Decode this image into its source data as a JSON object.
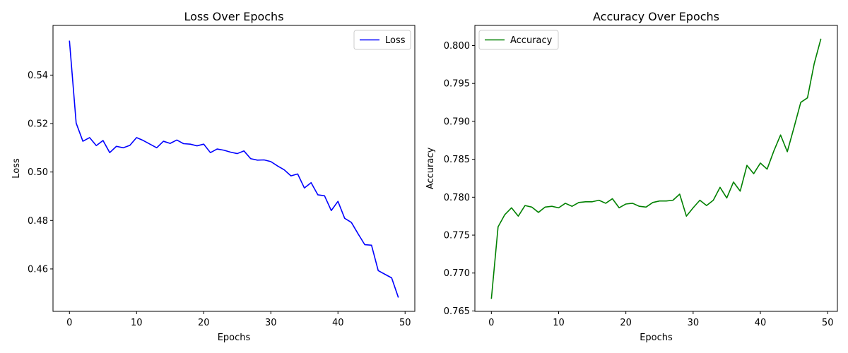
{
  "chart_data": [
    {
      "type": "line",
      "title": "Loss Over Epochs",
      "xlabel": "Epochs",
      "ylabel": "Loss",
      "xlim": [
        -2.45,
        51.45
      ],
      "ylim": [
        0.4425,
        0.5605
      ],
      "xticks": [
        0,
        10,
        20,
        30,
        40,
        50
      ],
      "yticks": [
        0.46,
        0.48,
        0.5,
        0.52,
        0.54
      ],
      "ytick_labels": [
        "0.46",
        "0.48",
        "0.50",
        "0.52",
        "0.54"
      ],
      "xtick_labels": [
        "0",
        "10",
        "20",
        "30",
        "40",
        "50"
      ],
      "legend": "top-right",
      "grid": false,
      "series": [
        {
          "name": "Loss",
          "color": "#0000ff",
          "x": [
            0,
            1,
            2,
            3,
            4,
            5,
            6,
            7,
            8,
            9,
            10,
            11,
            12,
            13,
            14,
            15,
            16,
            17,
            18,
            19,
            20,
            21,
            22,
            23,
            24,
            25,
            26,
            27,
            28,
            29,
            30,
            31,
            32,
            33,
            34,
            35,
            36,
            37,
            38,
            39,
            40,
            41,
            42,
            43,
            44,
            45,
            46,
            47,
            48,
            49
          ],
          "values": [
            0.5542,
            0.5202,
            0.5127,
            0.5142,
            0.5109,
            0.513,
            0.508,
            0.5106,
            0.51,
            0.511,
            0.5142,
            0.513,
            0.5115,
            0.51,
            0.5127,
            0.5118,
            0.5132,
            0.5117,
            0.5115,
            0.5108,
            0.5115,
            0.508,
            0.5095,
            0.509,
            0.5082,
            0.5076,
            0.5087,
            0.5055,
            0.5049,
            0.505,
            0.5043,
            0.5025,
            0.5009,
            0.4984,
            0.4992,
            0.4934,
            0.4956,
            0.4906,
            0.4902,
            0.4841,
            0.4879,
            0.4809,
            0.4792,
            0.4745,
            0.47,
            0.4698,
            0.4593,
            0.4578,
            0.4563,
            0.4482
          ]
        }
      ]
    },
    {
      "type": "line",
      "title": "Accuracy Over Epochs",
      "xlabel": "Epochs",
      "ylabel": "Accuracy",
      "xlim": [
        -2.45,
        51.45
      ],
      "ylim": [
        0.76495,
        0.80265
      ],
      "xticks": [
        0,
        10,
        20,
        30,
        40,
        50
      ],
      "yticks": [
        0.765,
        0.77,
        0.775,
        0.78,
        0.785,
        0.79,
        0.795,
        0.8
      ],
      "ytick_labels": [
        "0.765",
        "0.770",
        "0.775",
        "0.780",
        "0.785",
        "0.790",
        "0.795",
        "0.800"
      ],
      "xtick_labels": [
        "0",
        "10",
        "20",
        "30",
        "40",
        "50"
      ],
      "legend": "top-left",
      "grid": false,
      "series": [
        {
          "name": "Accuracy",
          "color": "#008000",
          "x": [
            0,
            1,
            2,
            3,
            4,
            5,
            6,
            7,
            8,
            9,
            10,
            11,
            12,
            13,
            14,
            15,
            16,
            17,
            18,
            19,
            20,
            21,
            22,
            23,
            24,
            25,
            26,
            27,
            28,
            29,
            30,
            31,
            32,
            33,
            34,
            35,
            36,
            37,
            38,
            39,
            40,
            41,
            42,
            43,
            44,
            45,
            46,
            47,
            48,
            49
          ],
          "values": [
            0.7666,
            0.7761,
            0.7777,
            0.7786,
            0.7775,
            0.7789,
            0.7787,
            0.778,
            0.7787,
            0.7788,
            0.7786,
            0.7792,
            0.7788,
            0.7793,
            0.7794,
            0.7794,
            0.7796,
            0.7792,
            0.7798,
            0.7786,
            0.7791,
            0.7792,
            0.7788,
            0.7787,
            0.7793,
            0.7795,
            0.7795,
            0.7796,
            0.7804,
            0.7775,
            0.7786,
            0.7796,
            0.7789,
            0.7796,
            0.7813,
            0.7799,
            0.782,
            0.7808,
            0.7842,
            0.7831,
            0.7845,
            0.7837,
            0.7861,
            0.7882,
            0.786,
            0.7892,
            0.7925,
            0.7931,
            0.7976,
            0.8009
          ]
        }
      ]
    }
  ]
}
